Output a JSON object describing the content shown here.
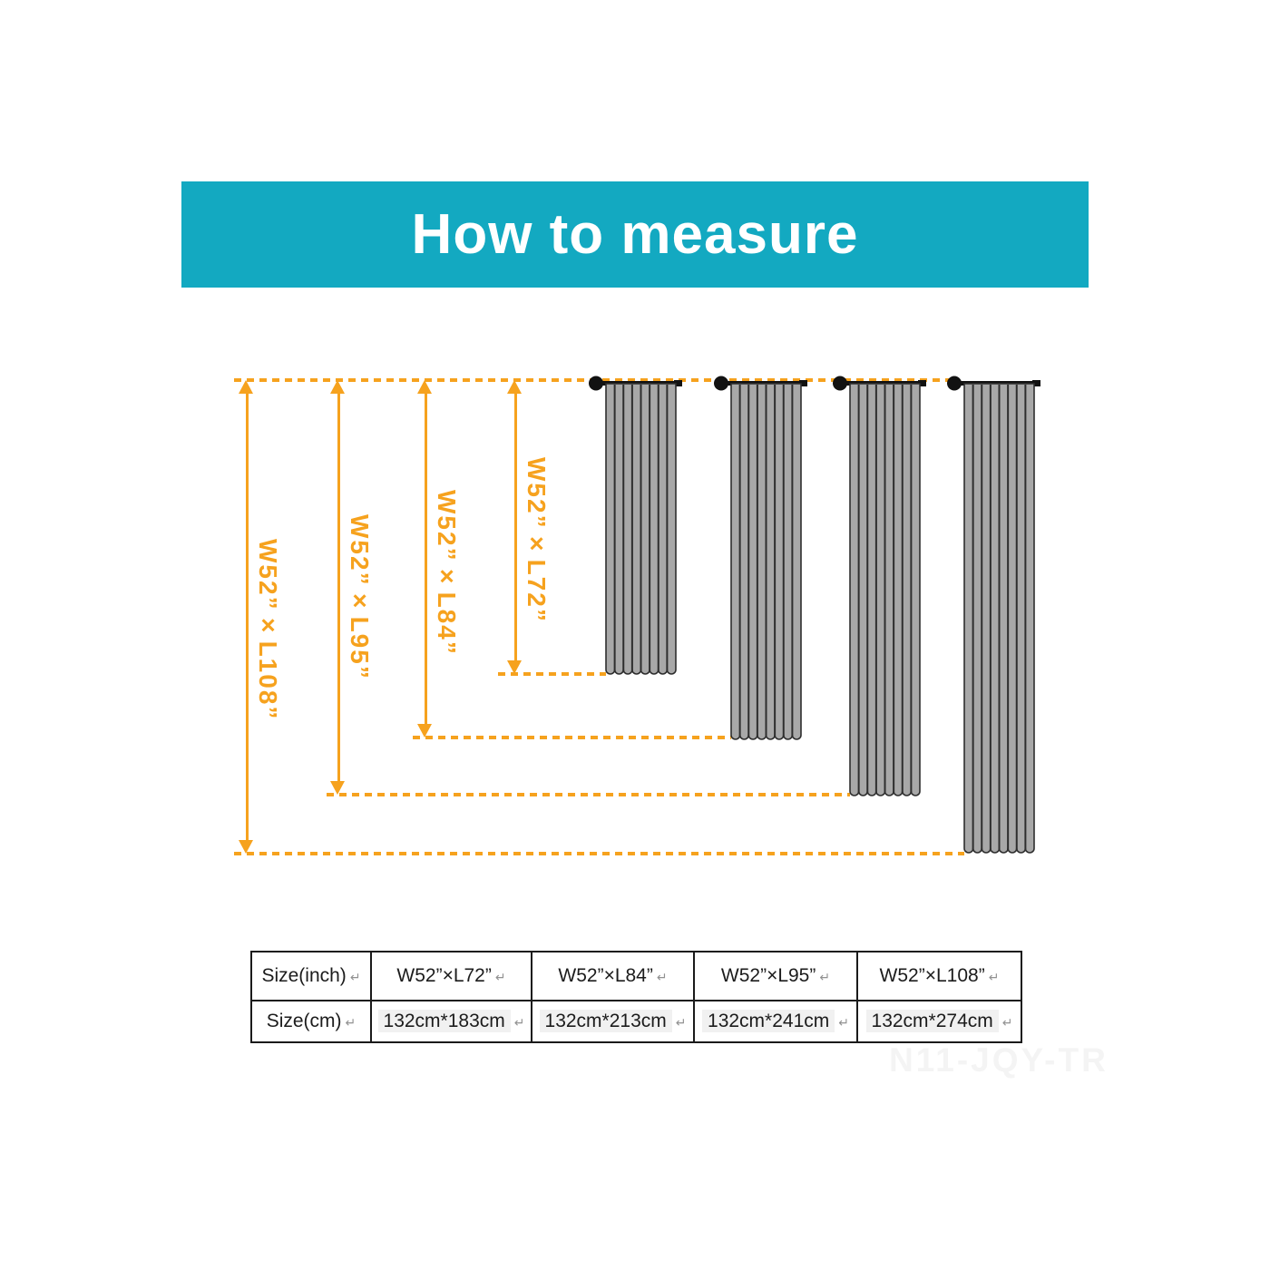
{
  "header": {
    "title": "How to measure"
  },
  "colors": {
    "banner_bg": "#13a9c1",
    "banner_text": "#ffffff",
    "accent_orange": "#f6a21e",
    "curtain_fill": "#a8a8a8",
    "curtain_line": "#2e2e2e",
    "rod_black": "#121212",
    "table_border": "#1a1a1a",
    "value_highlight": "#f1f1f1",
    "return_mark_gray": "#929292",
    "watermark_gray": "#f4f4f4"
  },
  "diagram": {
    "measures": [
      {
        "label": "W52”×L108”"
      },
      {
        "label": "W52”×L95”"
      },
      {
        "label": "W52”×L84”"
      },
      {
        "label": "W52”×L72”"
      }
    ],
    "curtain_count": 4
  },
  "table": {
    "rows": [
      {
        "header": "Size(inch)",
        "cells": [
          "W52”×L72”",
          "W52”×L84”",
          "W52”×L95”",
          "W52”×L108”"
        ],
        "highlight": false
      },
      {
        "header": "Size(cm)",
        "cells": [
          "132cm*183cm",
          "132cm*213cm",
          "132cm*241cm",
          "132cm*274cm"
        ],
        "highlight": true
      }
    ],
    "return_mark": "↵"
  },
  "watermark": {
    "text": "N11-JQY-TR"
  }
}
